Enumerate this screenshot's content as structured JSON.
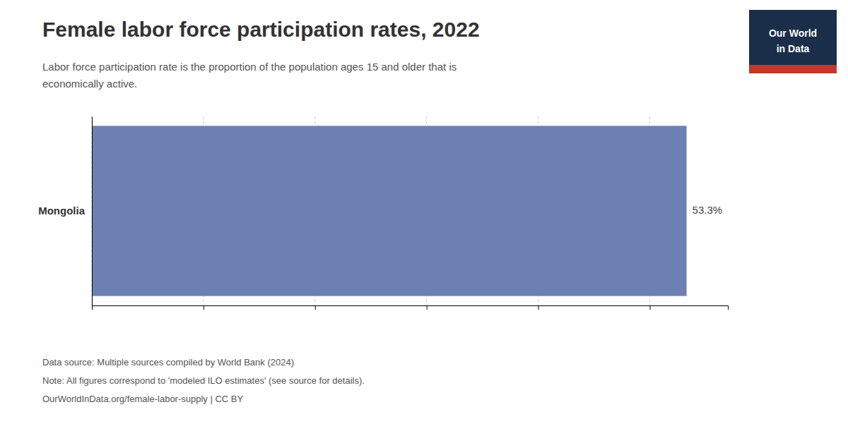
{
  "chart_data": {
    "type": "bar",
    "orientation": "horizontal",
    "title": "Female labor force participation rates, 2022",
    "subtitle": [
      "Labor force participation rate is the proportion of the population ages 15 and older that is",
      "economically active."
    ],
    "categories": [
      "Mongolia"
    ],
    "values": [
      53.3
    ],
    "value_labels": [
      "53.3%"
    ],
    "data_labels": true,
    "color": "#6c80b4",
    "xlim": [
      0,
      57
    ],
    "xticks": [
      0,
      10,
      20,
      30,
      40,
      50
    ],
    "grid": true,
    "tick_labels": "y",
    "annotations": {
      "footer": [
        "Data source: Multiple sources compiled by World Bank (2024)",
        "Note: All figures correspond to 'modeled ILO estimates' (see source for details).",
        "OurWorldInData.org/female-labor-supply | CC BY"
      ],
      "logo": [
        "Our World",
        "in Data"
      ]
    }
  }
}
